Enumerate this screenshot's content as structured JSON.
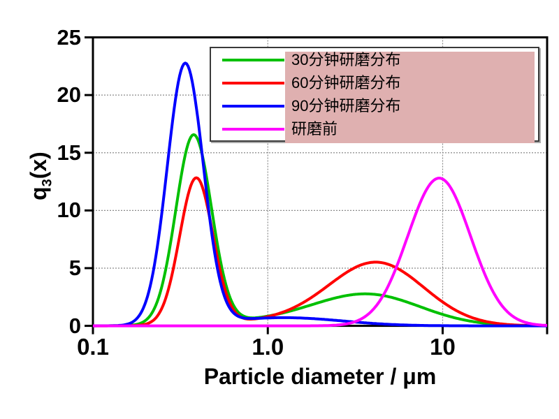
{
  "chart_data": {
    "type": "line",
    "title": "",
    "x_axis": {
      "title": "Particle diameter / μm",
      "scale": "log10",
      "min": 0.1,
      "max": 40,
      "tick_labels": [
        "0.1",
        "1.0",
        "10"
      ],
      "tick_values": [
        0.1,
        1.0,
        10
      ],
      "grid_x_values": [
        1.0,
        10
      ]
    },
    "y_axis": {
      "title": "q3(x)",
      "title_parts": {
        "base": "q",
        "sub": "3",
        "rest": "(x)"
      },
      "min": 0,
      "max": 25,
      "tick_labels": [
        "0",
        "5",
        "10",
        "15",
        "20",
        "25"
      ],
      "tick_values": [
        0,
        5,
        10,
        15,
        20,
        25
      ],
      "grid_values": [
        5,
        10,
        15,
        20
      ]
    },
    "legend_position": "top-right-inside",
    "grid": "dotted",
    "series": [
      {
        "label": "30分钟研磨分布",
        "color": "#00c000",
        "peaks": [
          {
            "x_um": 0.38,
            "q3": 16.4
          },
          {
            "x_um": 3.8,
            "q3": 2.6
          }
        ],
        "valley": {
          "x_um": 1.0,
          "q3": 0.85
        },
        "gaussians_log10": [
          [
            16.4,
            -0.424,
            0.102
          ],
          [
            2.6,
            0.58,
            0.3
          ],
          [
            0.45,
            0.08,
            0.35
          ]
        ]
      },
      {
        "label": "60分钟研磨分布",
        "color": "#ff0000",
        "peaks": [
          {
            "x_um": 0.39,
            "q3": 12.7
          },
          {
            "x_um": 4.2,
            "q3": 5.4
          }
        ],
        "valley": {
          "x_um": 1.0,
          "q3": 0.8
        },
        "gaussians_log10": [
          [
            12.7,
            -0.409,
            0.095
          ],
          [
            5.4,
            0.625,
            0.27
          ],
          [
            0.45,
            0.1,
            0.32
          ]
        ]
      },
      {
        "label": "90分钟研磨分布",
        "color": "#0000ff",
        "peaks": [
          {
            "x_um": 0.34,
            "q3": 22.6
          },
          {
            "x_um": 1.5,
            "q3": 0.8
          }
        ],
        "valley": {
          "x_um": 0.9,
          "q3": 0.6
        },
        "gaussians_log10": [
          [
            22.6,
            -0.472,
            0.103
          ],
          [
            0.55,
            0.18,
            0.3
          ],
          [
            0.25,
            -0.13,
            0.28
          ]
        ]
      },
      {
        "label": "研磨前",
        "color": "#ff00ff",
        "peaks": [
          {
            "x_um": 9.5,
            "q3": 12.8
          }
        ],
        "gaussians_log10": [
          [
            12.8,
            0.98,
            0.18
          ]
        ]
      }
    ]
  },
  "legend": {
    "highlight_color": "#dfb0b0",
    "border_color": "#3a3a3a"
  },
  "colors": {
    "axis": "#000000",
    "grid": "#8a8a8a",
    "background": "#ffffff"
  }
}
